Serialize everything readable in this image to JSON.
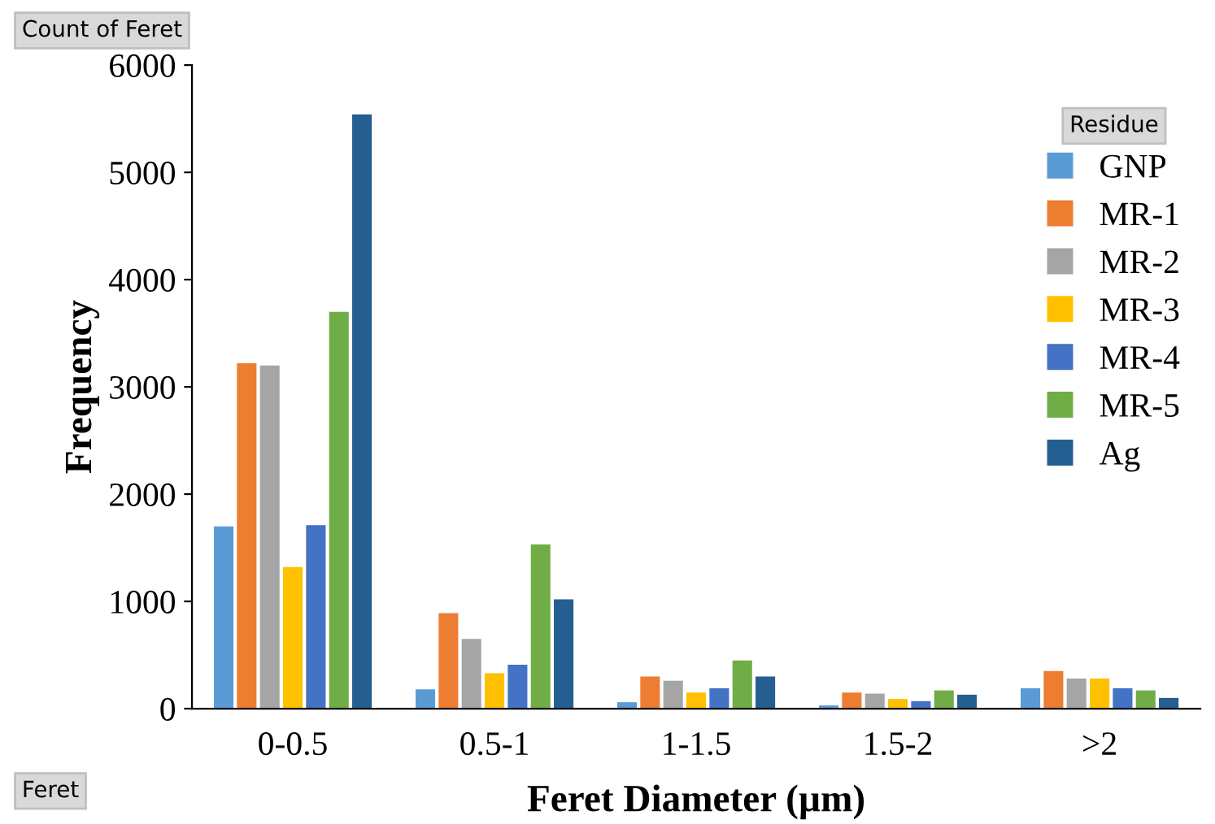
{
  "chart_data": {
    "type": "bar",
    "xlabel": "Feret Diameter (µm)",
    "ylabel": "Frequency",
    "legend_title": "Residue",
    "categories": [
      "0-0.5",
      "0.5-1",
      "1-1.5",
      "1.5-2",
      ">2"
    ],
    "series": [
      {
        "name": "GNP",
        "color": "#5b9bd5",
        "values": [
          1700,
          180,
          60,
          30,
          190
        ]
      },
      {
        "name": "MR-1",
        "color": "#ed7d31",
        "values": [
          3220,
          890,
          300,
          150,
          350
        ]
      },
      {
        "name": "MR-2",
        "color": "#a5a5a5",
        "values": [
          3200,
          650,
          260,
          140,
          280
        ]
      },
      {
        "name": "MR-3",
        "color": "#ffc000",
        "values": [
          1320,
          330,
          150,
          90,
          280
        ]
      },
      {
        "name": "MR-4",
        "color": "#4472c4",
        "values": [
          1710,
          410,
          190,
          70,
          190
        ]
      },
      {
        "name": "MR-5",
        "color": "#70ad47",
        "values": [
          3700,
          1530,
          450,
          170,
          170
        ]
      },
      {
        "name": "Ag",
        "color": "#255e91",
        "values": [
          5540,
          1020,
          300,
          130,
          100
        ]
      }
    ],
    "ylim": [
      0,
      6000
    ],
    "yticks": [
      0,
      1000,
      2000,
      3000,
      4000,
      5000,
      6000
    ],
    "grid": false,
    "legend": "top right",
    "annotations": [
      "Count of Feret",
      "Feret"
    ]
  }
}
